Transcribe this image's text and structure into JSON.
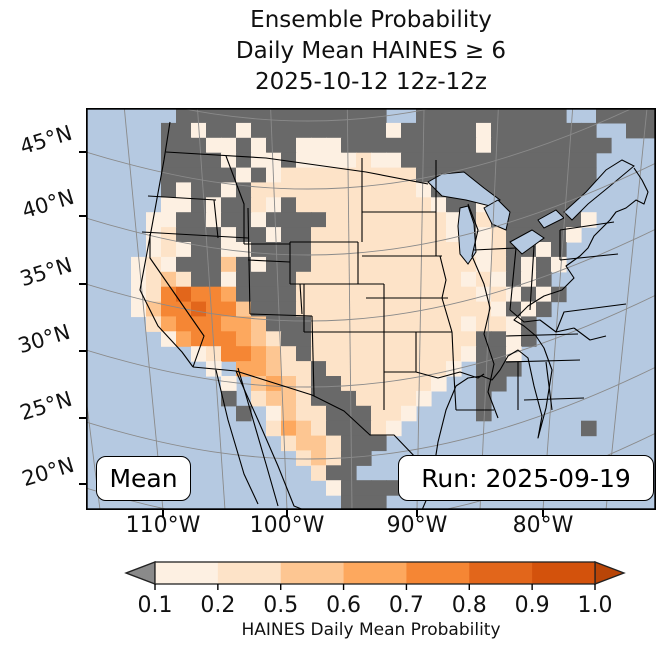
{
  "title": {
    "line1": "Ensemble Probability",
    "line2": "Daily Mean HAINES ≥ 6",
    "line3": "2025-10-12 12z-12z"
  },
  "map": {
    "annotation_left": "Mean",
    "annotation_right": "Run: 2025-09-19",
    "lat_tick_labels": [
      "45°N",
      "40°N",
      "35°N",
      "30°N",
      "25°N",
      "20°N"
    ],
    "lon_tick_labels": [
      "110°W",
      "100°W",
      "90°W",
      "80°W"
    ],
    "ocean_color": "#b5c9e1",
    "masked_color": "#696969",
    "border_color": "#000000",
    "graticule_color": "#8a8a8a"
  },
  "chart_data": {
    "type": "heatmap",
    "title": "Ensemble Probability Daily Mean HAINES ≥ 6 2025-10-12 12z-12z",
    "legend_label": "HAINES Daily Mean Probability",
    "value_bins": [
      0.1,
      0.2,
      0.5,
      0.6,
      0.7,
      0.8,
      0.9,
      1.0
    ],
    "grid": {
      "cols": 38,
      "rows": 27,
      "cell_codes": {
        "~": "ocean",
        "G": "masked below 0.1",
        "1": "0.1-0.2",
        "2": "0.2-0.5",
        "3": "0.5-0.6",
        "4": "0.6-0.7",
        "5": "0.7-0.8",
        "6": "0.8-0.9",
        "7": "0.9-1.0"
      },
      "rows_data": [
        "~~~~~~GGGGGGGGGGGGGG~~GGGGGGGGGG~~GGGG",
        "~~~~~GG1GG1GGGGGGGGG1GGGGG1GGGGGGG~~GG",
        "~~~~~GGG11G1GG111GGGGGGGGG1GGGGGGGG~~~",
        "~~~~~GGGG1G11G1111211GGGGGGGGGGGGG~~~~",
        "~~~~~GGGGG1G1222222222GGGGGGGGGGGG~~~~",
        "~~~~~G1GG1G222222222221GGGGGGGGGGG~~~~",
        "~~~~~11G1GG21G2222222221GG1GGGGGG~~~~~",
        "~~~~11GG1GG1GGGG222222221G2GGGGGG1~~~~",
        "~~~~12GGG1GG1GG2222222221G12GGGG1~~~~~",
        "~~~~121GG11GGGG2222222222112GG1G~~~~~~",
        "~~~121GGG3G1GGG2222222222212G1G1~~~~~~",
        "~~~1232GG1GGGG22222222222121G1G~~~~~~~",
        "~~~1256554GGGG222222222222121G1G~~~~~~",
        "~~~13556553GGG22222222222221G1G~~~~~~~",
        "~~~~24555443GGG22222222221221G~~~~~~~~",
        "~~~~~14555432GG22222222222GG1G~~~~~~~~",
        "~~~~~~~1255432G22222222221GG1~~~~~~~~~",
        "~~~~~~~~1~44322G222222221~GGG~~~~~~~~~",
        "~~~~~~~~~1~3432GG2222221~~GG~~~~~~~~~~",
        "~~~~~~~~~G~2332GGG22221~~~G~~~~~~~~~~~",
        "~~~~~~~~~~G~1322GGG221~~~~G~~~~~~~~~~~",
        "~~~~~~~~~~~~2432GGG21~~~~~~~~~~~~G~~~~",
        "~~~~~~~~~~~~~2332GGG~~~~~~~~~~~~~~~~~~",
        "~~~~~~~~~~~~~~232GG~~~~~~~~~~~~~~~~~~~",
        "~~~~~~~~~~~~~~~2GG~~~~~~~~~~~~~~~~~~~~",
        "~~~~~~~~~~~~~~~~1GGGGGG~~~~~~~~~~~~~~~",
        "~~~~~~~~~~~~~~~~~GGG~~~~~~~~~~~~~~~~~~"
      ]
    },
    "palette": {
      "~": "#b5c9e1",
      "G": "#696969",
      "1": "#fdf0e2",
      "2": "#fde3c8",
      "3": "#fdc692",
      "4": "#fda85e",
      "5": "#f58634",
      "6": "#e2661b",
      "7": "#d3520c"
    },
    "colorbar": {
      "tick_labels": [
        "0.1",
        "0.2",
        "0.5",
        "0.6",
        "0.7",
        "0.8",
        "0.9",
        "1.0"
      ],
      "segment_colors": [
        "#fdf0e2",
        "#fde3c8",
        "#fdc692",
        "#fda85e",
        "#f58634",
        "#e2661b",
        "#d3520c"
      ],
      "under_color": "#8a8a8a",
      "over_color": "#b94507",
      "label": "HAINES Daily Mean Probability"
    }
  }
}
